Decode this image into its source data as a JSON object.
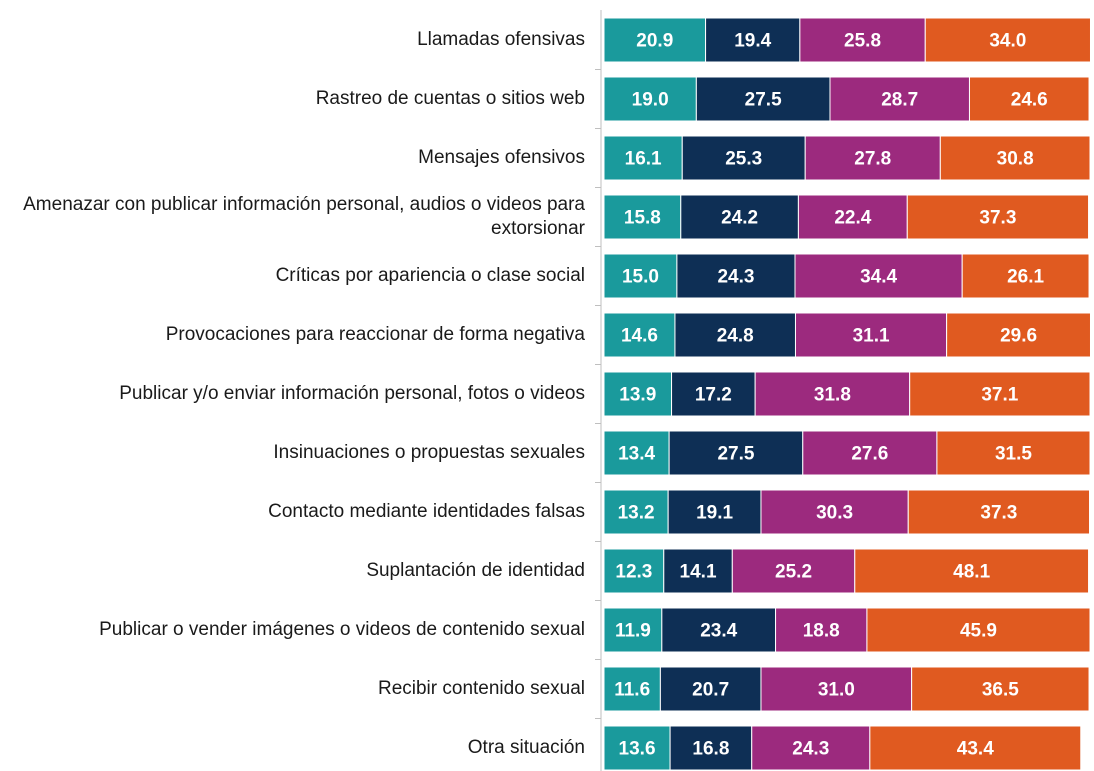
{
  "chart_data": {
    "type": "stacked_barh",
    "categories": [
      "Llamadas ofensivas",
      "Rastreo de cuentas o sitios web",
      "Mensajes ofensivos",
      "Amenazar con publicar información personal, audios o videos para extorsionar",
      "Críticas por apariencia o clase social",
      "Provocaciones para reaccionar de forma negativa",
      "Publicar y/o enviar información personal, fotos o videos",
      "Insinuaciones o propuestas sexuales",
      "Contacto mediante identidades falsas",
      "Suplantación de identidad",
      "Publicar o vender imágenes o videos de contenido sexual",
      "Recibir contenido sexual",
      "Otra situación"
    ],
    "series": [
      {
        "color": "#1a9a9c",
        "values": [
          20.9,
          19.0,
          16.1,
          15.8,
          15.0,
          14.6,
          13.9,
          13.4,
          13.2,
          12.3,
          11.9,
          11.6,
          13.6
        ],
        "value_labels": [
          "20.9",
          "19.0",
          "16.1",
          "15.8",
          "15.0",
          "14.6",
          "13.9",
          "13.4",
          "13.2",
          "12.3",
          "11.9",
          "11.6",
          "13.6"
        ]
      },
      {
        "color": "#0e2f55",
        "values": [
          19.4,
          27.5,
          25.3,
          24.2,
          24.3,
          24.8,
          17.2,
          27.5,
          19.1,
          14.1,
          23.4,
          20.7,
          16.8
        ],
        "value_labels": [
          "19.4",
          "27.5",
          "25.3",
          "24.2",
          "24.3",
          "24.8",
          "17.2",
          "27.5",
          "19.1",
          "14.1",
          "23.4",
          "20.7",
          "16.8"
        ]
      },
      {
        "color": "#9c2a7e",
        "values": [
          25.8,
          28.7,
          27.8,
          22.4,
          34.4,
          31.1,
          31.8,
          27.6,
          30.3,
          25.2,
          18.8,
          31.0,
          24.3
        ],
        "value_labels": [
          "25.8",
          "28.7",
          "27.8",
          "22.4",
          "34.4",
          "31.1",
          "31.8",
          "27.6",
          "30.3",
          "25.2",
          "18.8",
          "31.0",
          "24.3"
        ]
      },
      {
        "color": "#e05a20",
        "values": [
          34.0,
          24.6,
          30.8,
          37.3,
          26.1,
          29.6,
          37.1,
          31.5,
          37.3,
          48.1,
          45.9,
          36.5,
          43.4
        ],
        "value_labels": [
          "34.0",
          "24.6",
          "30.8",
          "37.3",
          "26.1",
          "29.6",
          "37.1",
          "31.5",
          "37.3",
          "48.1",
          "45.9",
          "36.5",
          "43.4"
        ]
      }
    ],
    "xlim": [
      0,
      100
    ]
  }
}
